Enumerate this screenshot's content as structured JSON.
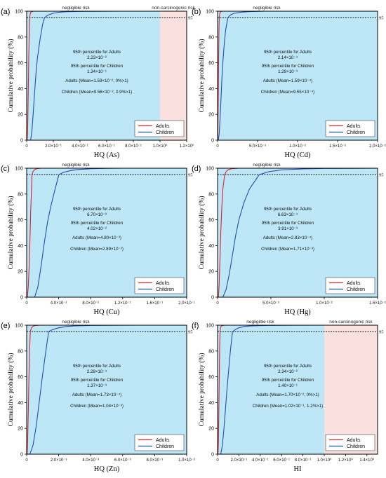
{
  "chart_data": [
    {
      "id": "a",
      "panel_label": "(a)",
      "type": "line",
      "xlabel": "HQ (As)",
      "ylabel": "Cumulative probability (%)",
      "xlim": [
        0,
        1.2
      ],
      "ylim": [
        0,
        100
      ],
      "x_tick_values": [
        0,
        0.2,
        0.4,
        0.6,
        0.8,
        1.0,
        1.2
      ],
      "x_tick_labels": [
        "0",
        "2.0×10⁻¹",
        "4.0×10⁻¹",
        "6.0×10⁻¹",
        "8.0×10⁻¹",
        "1.0×10⁰",
        "1.2×10⁰"
      ],
      "y_tick_values": [
        0,
        20,
        40,
        60,
        80,
        100
      ],
      "y_tick_labels": [
        "0",
        "20",
        "40",
        "60",
        "80",
        "100"
      ],
      "ref_line_y": 95,
      "ref_line_label": "95",
      "regions": [
        {
          "from": 0,
          "to": 1.0,
          "color": "#bde7f7",
          "label": "negligible risk"
        },
        {
          "from": 1.0,
          "to": 1.2,
          "color": "#fbe0e0",
          "label": "non-carcinogenic risk"
        }
      ],
      "annotations": [
        "95th percentile for Adults",
        "2.23×10⁻²",
        "95th percentile for Children",
        "1.34×10⁻¹",
        "Adults (Mean=1.59×10⁻², 0%>1)",
        "Children (Mean=9.56×10⁻², 0.9%>1)"
      ],
      "series": [
        {
          "name": "Adults",
          "color": "#d62728",
          "x": [
            0.004,
            0.008,
            0.012,
            0.016,
            0.02,
            0.0223,
            0.026,
            0.03,
            0.036,
            0.044,
            0.06,
            0.08,
            1.2
          ],
          "values": [
            0,
            12,
            38,
            65,
            88,
            95,
            97.5,
            99,
            99.6,
            99.9,
            100,
            100,
            100
          ]
        },
        {
          "name": "Children",
          "color": "#1f4eb4",
          "x": [
            0.03,
            0.04,
            0.05,
            0.06,
            0.07,
            0.08,
            0.1,
            0.12,
            0.134,
            0.16,
            0.2,
            0.25,
            0.3,
            0.4,
            0.5,
            0.7,
            1.2
          ],
          "values": [
            0,
            8,
            22,
            38,
            52,
            63,
            78,
            90,
            95,
            97,
            98.5,
            99.3,
            99.6,
            99.8,
            99.9,
            100,
            100
          ]
        }
      ]
    },
    {
      "id": "b",
      "panel_label": "(b)",
      "type": "line",
      "xlabel": "HQ (Cd)",
      "ylabel": "Cumulative probability (%)",
      "xlim": [
        0,
        0.02
      ],
      "ylim": [
        0,
        100
      ],
      "x_tick_values": [
        0,
        0.005,
        0.01,
        0.015,
        0.02
      ],
      "x_tick_labels": [
        "0",
        "5.0×10⁻³",
        "1.0×10⁻²",
        "1.5×10⁻²",
        "2.0×10⁻²"
      ],
      "y_tick_values": [
        0,
        20,
        40,
        60,
        80,
        100
      ],
      "y_tick_labels": [
        "0",
        "20",
        "40",
        "60",
        "80",
        "100"
      ],
      "ref_line_y": 95,
      "ref_line_label": "95",
      "regions": [
        {
          "from": 0,
          "to": 0.02,
          "color": "#bde7f7",
          "label": "negligible risk"
        }
      ],
      "annotations": [
        "95th percentile for Adults",
        "2.14×10⁻⁴",
        "95th percentile for Children",
        "1.29×10⁻³",
        "Adults (Mean=1.59×10⁻⁴)",
        "Children (Mean=9.55×10⁻⁴)"
      ],
      "series": [
        {
          "name": "Adults",
          "color": "#d62728",
          "x": [
            2e-05,
            5e-05,
            9e-05,
            0.00013,
            0.00017,
            0.000214,
            0.00026,
            0.0003,
            0.0004,
            0.0006,
            0.02
          ],
          "values": [
            0,
            10,
            35,
            62,
            84,
            95,
            97.5,
            98.8,
            99.6,
            100,
            100
          ]
        },
        {
          "name": "Children",
          "color": "#1f4eb4",
          "x": [
            0.0001,
            0.0002,
            0.0003,
            0.0004,
            0.0005,
            0.0006,
            0.0008,
            0.001,
            0.00129,
            0.0016,
            0.002,
            0.003,
            0.004,
            0.006,
            0.02
          ],
          "values": [
            0,
            5,
            15,
            28,
            42,
            55,
            72,
            85,
            95,
            97,
            98.3,
            99.3,
            99.7,
            100,
            100
          ]
        }
      ]
    },
    {
      "id": "c",
      "panel_label": "(c)",
      "type": "line",
      "xlabel": "HQ (Cu)",
      "ylabel": "Cumulative probability (%)",
      "xlim": [
        0,
        0.2
      ],
      "ylim": [
        0,
        100
      ],
      "x_tick_values": [
        0,
        0.04,
        0.08,
        0.12,
        0.16,
        0.2
      ],
      "x_tick_labels": [
        "0",
        "4.0×10⁻²",
        "8.0×10⁻²",
        "1.2×10⁻¹",
        "1.6×10⁻¹",
        "2.0×10⁻¹"
      ],
      "y_tick_values": [
        0,
        20,
        40,
        60,
        80,
        100
      ],
      "y_tick_labels": [
        "0",
        "20",
        "40",
        "60",
        "80",
        "100"
      ],
      "ref_line_y": 95,
      "ref_line_label": "95",
      "regions": [
        {
          "from": 0,
          "to": 0.2,
          "color": "#bde7f7",
          "label": "negligible risk"
        }
      ],
      "annotations": [
        "95th percentile for Adults",
        "6.70×10⁻³",
        "95th percentile for Children",
        "4.02×10⁻²",
        "Adults (Mean=4.80×10⁻³)",
        "Children (Mean=2.89×10⁻²)"
      ],
      "series": [
        {
          "name": "Adults",
          "color": "#d62728",
          "x": [
            0.0008,
            0.002,
            0.003,
            0.004,
            0.005,
            0.0067,
            0.008,
            0.01,
            0.013,
            0.018,
            0.2
          ],
          "values": [
            0,
            8,
            22,
            42,
            66,
            95,
            97.5,
            99,
            99.7,
            100,
            100
          ]
        },
        {
          "name": "Children",
          "color": "#1f4eb4",
          "x": [
            0.01,
            0.014,
            0.018,
            0.022,
            0.026,
            0.03,
            0.034,
            0.0402,
            0.046,
            0.055,
            0.065,
            0.08,
            0.1,
            0.12,
            0.2
          ],
          "values": [
            0,
            8,
            24,
            42,
            58,
            70,
            80,
            95,
            96.8,
            98.2,
            99,
            99.6,
            99.9,
            100,
            100
          ]
        }
      ]
    },
    {
      "id": "d",
      "panel_label": "(d)",
      "type": "line",
      "xlabel": "HQ (Hg)",
      "ylabel": "Cumulative probability (%)",
      "xlim": [
        0,
        0.015
      ],
      "ylim": [
        0,
        100
      ],
      "x_tick_values": [
        0,
        0.005,
        0.01,
        0.015
      ],
      "x_tick_labels": [
        "0",
        "5.0×10⁻³",
        "1.0×10⁻²",
        "1.5×10⁻²"
      ],
      "y_tick_values": [
        0,
        20,
        40,
        60,
        80,
        100
      ],
      "y_tick_labels": [
        "0",
        "20",
        "40",
        "60",
        "80",
        "100"
      ],
      "ref_line_y": 95,
      "ref_line_label": "95",
      "regions": [
        {
          "from": 0,
          "to": 0.015,
          "color": "#bde7f7",
          "label": "negligible risk"
        }
      ],
      "annotations": [
        "95th percentile for Adults",
        "6.63×10⁻⁴",
        "95th percentile for Children",
        "3.91×10⁻³",
        "Adults (Mean=2.83×10⁻⁴)",
        "Children (Mean=1.71×10⁻³)"
      ],
      "series": [
        {
          "name": "Adults",
          "color": "#d62728",
          "x": [
            8e-05,
            0.00015,
            0.00022,
            0.0003,
            0.0004,
            0.0005,
            0.000663,
            0.0008,
            0.001,
            0.0013,
            0.002,
            0.015
          ],
          "values": [
            0,
            10,
            28,
            50,
            70,
            84,
            95,
            97.3,
            98.8,
            99.6,
            100,
            100
          ]
        },
        {
          "name": "Children",
          "color": "#1f4eb4",
          "x": [
            0.0005,
            0.0008,
            0.0011,
            0.0014,
            0.0017,
            0.002,
            0.0025,
            0.003,
            0.00391,
            0.0048,
            0.006,
            0.008,
            0.01,
            0.015
          ],
          "values": [
            0,
            6,
            18,
            33,
            48,
            60,
            74,
            84,
            95,
            97.3,
            98.7,
            99.5,
            99.8,
            100
          ]
        }
      ]
    },
    {
      "id": "e",
      "panel_label": "(e)",
      "type": "line",
      "xlabel": "HQ (Zn)",
      "ylabel": "Cumulative probability (%)",
      "xlim": [
        0,
        0.01
      ],
      "ylim": [
        0,
        100
      ],
      "x_tick_values": [
        0,
        0.002,
        0.004,
        0.006,
        0.008,
        0.01
      ],
      "x_tick_labels": [
        "0",
        "2.0×10⁻³",
        "4.0×10⁻³",
        "6.0×10⁻³",
        "8.0×10⁻³",
        "1.0×10⁻²"
      ],
      "y_tick_values": [
        0,
        20,
        40,
        60,
        80,
        100
      ],
      "y_tick_labels": [
        "0",
        "20",
        "40",
        "60",
        "80",
        "100"
      ],
      "ref_line_y": 95,
      "ref_line_label": "95",
      "regions": [
        {
          "from": 0,
          "to": 0.01,
          "color": "#bde7f7",
          "label": "negligible risk"
        }
      ],
      "annotations": [
        "95th percentile for Adults",
        "2.28×10⁻⁴",
        "95th percentile for Children",
        "1.37×10⁻³",
        "Adults (Mean=1.73×10⁻⁴)",
        "Children (Mean=1.04×10⁻³)"
      ],
      "series": [
        {
          "name": "Adults",
          "color": "#d62728",
          "x": [
            3e-05,
            6e-05,
            0.0001,
            0.00014,
            0.00018,
            0.000228,
            0.00028,
            0.00035,
            0.0005,
            0.0008,
            0.01
          ],
          "values": [
            0,
            10,
            32,
            58,
            80,
            95,
            97.3,
            98.8,
            99.7,
            100,
            100
          ]
        },
        {
          "name": "Children",
          "color": "#1f4eb4",
          "x": [
            0.0002,
            0.0004,
            0.0006,
            0.0008,
            0.001,
            0.0012,
            0.00137,
            0.0016,
            0.002,
            0.0025,
            0.003,
            0.004,
            0.005,
            0.007,
            0.01
          ],
          "values": [
            0,
            7,
            22,
            42,
            62,
            80,
            95,
            96.5,
            98,
            99,
            99.5,
            99.8,
            99.9,
            100,
            100
          ]
        }
      ]
    },
    {
      "id": "f",
      "panel_label": "(f)",
      "type": "line",
      "xlabel": "HI",
      "ylabel": "Cumulative probability (%)",
      "xlim": [
        0,
        1.5
      ],
      "ylim": [
        0,
        100
      ],
      "x_tick_values": [
        0,
        0.2,
        0.4,
        0.6,
        0.8,
        1.0,
        1.2,
        1.4
      ],
      "x_tick_labels": [
        "0",
        "2.0×10⁻¹",
        "4.0×10⁻¹",
        "6.0×10⁻¹",
        "8.0×10⁻¹",
        "1.0×10⁰",
        "1.2×10⁰",
        "1.4×10⁰"
      ],
      "y_tick_values": [
        0,
        20,
        40,
        60,
        80,
        100
      ],
      "y_tick_labels": [
        "0",
        "20",
        "40",
        "60",
        "80",
        "100"
      ],
      "ref_line_y": 95,
      "ref_line_label": "95",
      "regions": [
        {
          "from": 0,
          "to": 1.0,
          "color": "#bde7f7",
          "label": "negligible risk"
        },
        {
          "from": 1.0,
          "to": 1.5,
          "color": "#fbe0e0",
          "label": "non-carcinogenic risk"
        }
      ],
      "annotations": [
        "95th percentile for Adults",
        "2.34×10⁻²",
        "95th percentile for Children",
        "1.40×10⁻¹",
        "Adults (Mean=1.70×10⁻², 0%>1)",
        "Children (Mean=1.02×10⁻¹, 1.2%>1)"
      ],
      "series": [
        {
          "name": "Adults",
          "color": "#d62728",
          "x": [
            0.004,
            0.008,
            0.012,
            0.016,
            0.02,
            0.0234,
            0.027,
            0.032,
            0.04,
            0.055,
            0.08,
            1.5
          ],
          "values": [
            0,
            10,
            34,
            60,
            84,
            95,
            97.5,
            99,
            99.6,
            99.9,
            100,
            100
          ]
        },
        {
          "name": "Children",
          "color": "#1f4eb4",
          "x": [
            0.03,
            0.045,
            0.06,
            0.075,
            0.09,
            0.105,
            0.12,
            0.14,
            0.17,
            0.2,
            0.25,
            0.3,
            0.4,
            0.5,
            0.7,
            1.0,
            1.5
          ],
          "values": [
            0,
            7,
            20,
            36,
            52,
            66,
            80,
            95,
            96.8,
            98,
            99,
            99.4,
            99.7,
            99.85,
            99.95,
            100,
            100
          ]
        }
      ]
    }
  ]
}
